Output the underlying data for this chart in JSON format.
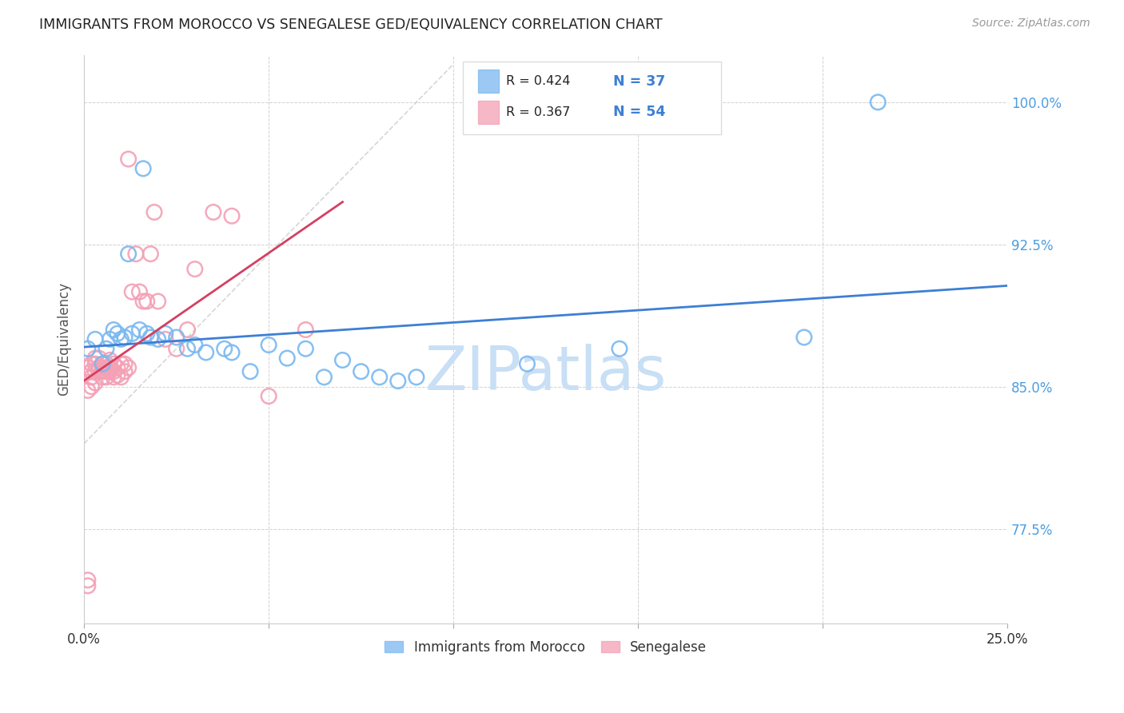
{
  "title": "IMMIGRANTS FROM MOROCCO VS SENEGALESE GED/EQUIVALENCY CORRELATION CHART",
  "source": "Source: ZipAtlas.com",
  "ylabel": "GED/Equivalency",
  "color_blue": "#7ab8f0",
  "color_pink": "#f4a0b5",
  "color_blue_line": "#3d7fd4",
  "color_pink_line": "#d44060",
  "legend_label1": "Immigrants from Morocco",
  "legend_label2": "Senegalese",
  "watermark_color": "#c8dff5",
  "blue_x": [
    0.001,
    0.003,
    0.005,
    0.006,
    0.007,
    0.008,
    0.009,
    0.01,
    0.011,
    0.012,
    0.013,
    0.015,
    0.016,
    0.017,
    0.018,
    0.02,
    0.022,
    0.025,
    0.028,
    0.03,
    0.033,
    0.038,
    0.04,
    0.045,
    0.05,
    0.055,
    0.06,
    0.065,
    0.07,
    0.075,
    0.08,
    0.085,
    0.09,
    0.12,
    0.145,
    0.195,
    0.215
  ],
  "blue_y": [
    0.87,
    0.875,
    0.862,
    0.87,
    0.875,
    0.88,
    0.878,
    0.875,
    0.876,
    0.92,
    0.878,
    0.88,
    0.965,
    0.878,
    0.876,
    0.875,
    0.878,
    0.876,
    0.87,
    0.872,
    0.868,
    0.87,
    0.868,
    0.858,
    0.872,
    0.865,
    0.87,
    0.855,
    0.864,
    0.858,
    0.855,
    0.853,
    0.855,
    0.862,
    0.87,
    0.876,
    1.0
  ],
  "pink_x": [
    0.001,
    0.001,
    0.001,
    0.002,
    0.002,
    0.002,
    0.003,
    0.003,
    0.003,
    0.004,
    0.004,
    0.004,
    0.005,
    0.005,
    0.005,
    0.005,
    0.006,
    0.006,
    0.006,
    0.006,
    0.007,
    0.007,
    0.007,
    0.008,
    0.008,
    0.009,
    0.009,
    0.01,
    0.01,
    0.011,
    0.011,
    0.012,
    0.013,
    0.014,
    0.015,
    0.016,
    0.017,
    0.018,
    0.019,
    0.02,
    0.022,
    0.025,
    0.028,
    0.03,
    0.035,
    0.04,
    0.05,
    0.06,
    0.001,
    0.002,
    0.003,
    0.004,
    0.008,
    0.012
  ],
  "pink_y": [
    0.745,
    0.748,
    0.86,
    0.855,
    0.858,
    0.862,
    0.858,
    0.862,
    0.865,
    0.858,
    0.86,
    0.865,
    0.855,
    0.858,
    0.86,
    0.862,
    0.855,
    0.858,
    0.86,
    0.862,
    0.858,
    0.86,
    0.864,
    0.858,
    0.862,
    0.856,
    0.86,
    0.855,
    0.862,
    0.858,
    0.862,
    0.86,
    0.9,
    0.92,
    0.9,
    0.895,
    0.895,
    0.92,
    0.942,
    0.895,
    0.875,
    0.87,
    0.88,
    0.912,
    0.942,
    0.94,
    0.845,
    0.88,
    0.848,
    0.85,
    0.852,
    0.86,
    0.855,
    0.97
  ],
  "xlim": [
    0.0,
    0.25
  ],
  "ylim": [
    0.725,
    1.025
  ],
  "xticks": [
    0.0,
    0.05,
    0.1,
    0.15,
    0.2,
    0.25
  ],
  "xticklabels": [
    "0.0%",
    "",
    "",
    "",
    "",
    "25.0%"
  ],
  "yticks": [
    0.775,
    0.85,
    0.925,
    1.0
  ],
  "yticklabels": [
    "77.5%",
    "85.0%",
    "92.5%",
    "100.0%"
  ]
}
